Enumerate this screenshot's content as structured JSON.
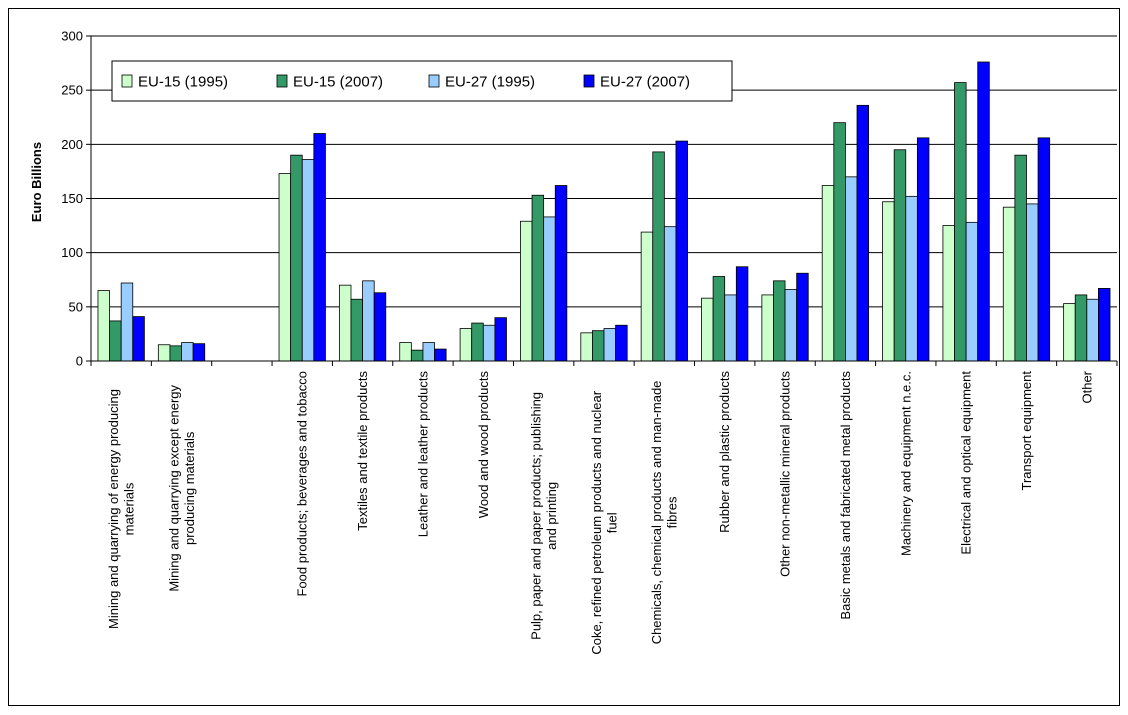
{
  "chart_data": {
    "type": "bar",
    "title": "",
    "xlabel": "",
    "ylabel": "Euro Billions",
    "ylim": [
      0,
      300
    ],
    "yticks": [
      0,
      50,
      100,
      150,
      200,
      250,
      300
    ],
    "grid": true,
    "legend_position": "top-left",
    "categories": [
      "Mining and quarrying of energy producing materials",
      "Mining and quarrying except energy producing materials",
      "",
      "Food products; beverages and tobacco",
      "Textiles and textile products",
      "Leather and leather products",
      "Wood and wood products",
      "Pulp, paper and paper products; publishing and printing",
      "Coke, refined petroleum products and nuclear fuel",
      "Chemicals, chemical products and man-made fibres",
      "Rubber and plastic products",
      "Other non-metallic mineral products",
      "Basic metals and fabricated metal products",
      "Machinery and equipment n.e.c.",
      "Electrical and optical equipment",
      "Transport equipment",
      "Other"
    ],
    "category_label_lines": [
      [
        "Mining and quarrying of energy producing",
        "materials"
      ],
      [
        "Mining and quarrying except energy",
        "producing materials"
      ],
      [],
      [
        "Food products; beverages and tobacco"
      ],
      [
        "Textiles and textile products"
      ],
      [
        "Leather and leather products"
      ],
      [
        "Wood and wood products"
      ],
      [
        "Pulp, paper and paper products; publishing",
        "and printing"
      ],
      [
        "Coke, refined petroleum products and nuclear",
        "fuel"
      ],
      [
        "Chemicals, chemical products and man-made",
        "fibres"
      ],
      [
        "Rubber and plastic products"
      ],
      [
        "Other non-metallic mineral products"
      ],
      [
        "Basic metals and fabricated metal products"
      ],
      [
        "Machinery and equipment n.e.c."
      ],
      [
        "Electrical and optical equipment"
      ],
      [
        "Transport equipment"
      ],
      [
        "Other"
      ]
    ],
    "series": [
      {
        "name": "EU-15 (1995)",
        "color": "#ccffcc",
        "values": [
          65,
          15,
          null,
          173,
          70,
          17,
          30,
          129,
          26,
          119,
          58,
          61,
          162,
          147,
          125,
          142,
          53
        ]
      },
      {
        "name": "EU-15 (2007)",
        "color": "#339966",
        "values": [
          37,
          14,
          null,
          190,
          57,
          10,
          35,
          153,
          28,
          193,
          78,
          74,
          220,
          195,
          257,
          190,
          61
        ]
      },
      {
        "name": "EU-27 (1995)",
        "color": "#99ccff",
        "values": [
          72,
          17,
          null,
          186,
          74,
          17,
          33,
          133,
          30,
          124,
          61,
          66,
          170,
          152,
          128,
          145,
          57
        ]
      },
      {
        "name": "EU-27 (2007)",
        "color": "#0000ff",
        "values": [
          41,
          16,
          null,
          210,
          63,
          11,
          40,
          162,
          33,
          203,
          87,
          81,
          236,
          206,
          276,
          206,
          67
        ]
      }
    ]
  }
}
